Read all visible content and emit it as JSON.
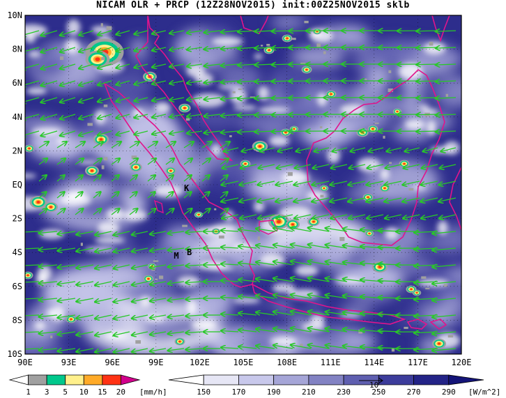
{
  "title": "NICAM OLR + PRCP (12Z28NOV2015) init:00Z25NOV2015 sklb",
  "axes": {
    "lon_ticks": [
      "90E",
      "93E",
      "96E",
      "99E",
      "102E",
      "105E",
      "108E",
      "111E",
      "114E",
      "117E",
      "120E"
    ],
    "lat_ticks": [
      "10N",
      "8N",
      "6N",
      "4N",
      "2N",
      "EQ",
      "2S",
      "4S",
      "6S",
      "8S",
      "10S"
    ]
  },
  "places": [
    {
      "code": "K",
      "lon": 101.1,
      "lat": -0.2
    },
    {
      "code": "M",
      "lon": 100.4,
      "lat": -4.2
    },
    {
      "code": "B",
      "lon": 101.3,
      "lat": -4.0
    }
  ],
  "colorbars": {
    "precip": {
      "unit": "[mm/h]",
      "levels": [
        "1",
        "3",
        "5",
        "10",
        "15",
        "20"
      ],
      "colors": [
        "#ffffff",
        "#a0a0a0",
        "#00c88c",
        "#fff08c",
        "#ffaa28",
        "#ff3214",
        "#d2008c"
      ]
    },
    "olr": {
      "unit": "[W/m^2]",
      "levels": [
        "150",
        "170",
        "190",
        "210",
        "230",
        "250",
        "270",
        "290"
      ],
      "colors": [
        "#ffffff",
        "#e6e6f5",
        "#c8c8eb",
        "#a5a5d7",
        "#8282c3",
        "#5f5fb0",
        "#3c3c9b",
        "#232387",
        "#141478"
      ],
      "vector_ref": "10"
    }
  },
  "colors": {
    "coast": "#e1148c",
    "wind": "#28c828",
    "frame": "#000000"
  }
}
